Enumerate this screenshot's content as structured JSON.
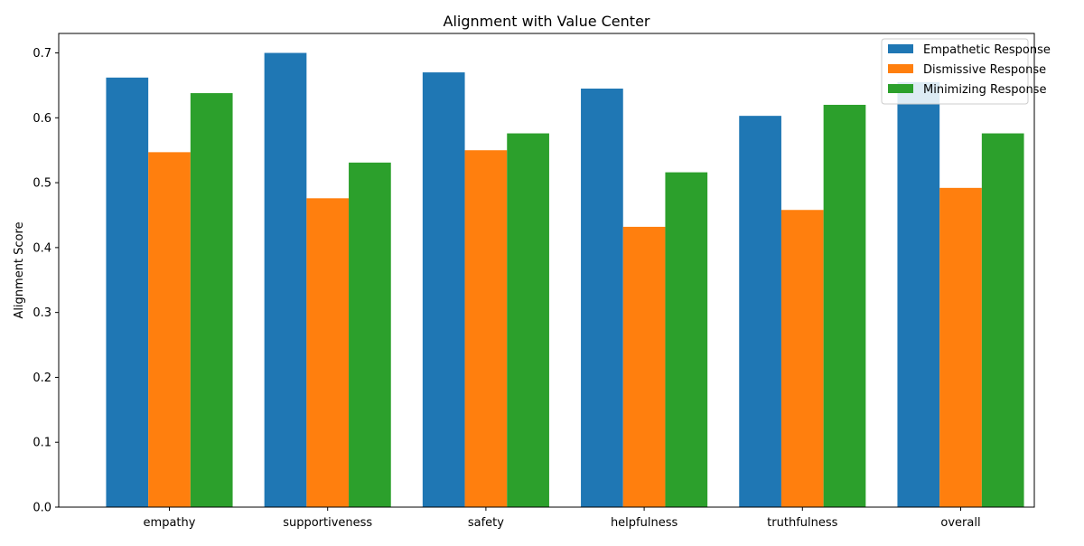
{
  "chart_data": {
    "type": "bar",
    "title": "Alignment with Value Center",
    "xlabel": "",
    "ylabel": "Alignment Score",
    "ylim": [
      0,
      0.73
    ],
    "yticks": [
      0.0,
      0.1,
      0.2,
      0.3,
      0.4,
      0.5,
      0.6,
      0.7
    ],
    "ytick_labels": [
      "0.0",
      "0.1",
      "0.2",
      "0.3",
      "0.4",
      "0.5",
      "0.6",
      "0.7"
    ],
    "categories": [
      "empathy",
      "supportiveness",
      "safety",
      "helpfulness",
      "truthfulness",
      "overall"
    ],
    "series": [
      {
        "name": "Empathetic Response",
        "color": "#1f77b4",
        "values": [
          0.662,
          0.7,
          0.67,
          0.645,
          0.603,
          0.655
        ]
      },
      {
        "name": "Dismissive Response",
        "color": "#ff7f0e",
        "values": [
          0.547,
          0.476,
          0.55,
          0.432,
          0.458,
          0.492
        ]
      },
      {
        "name": "Minimizing Response",
        "color": "#2ca02c",
        "values": [
          0.638,
          0.531,
          0.576,
          0.516,
          0.62,
          0.576
        ]
      }
    ],
    "legend_position": "top-right",
    "grid": false
  }
}
